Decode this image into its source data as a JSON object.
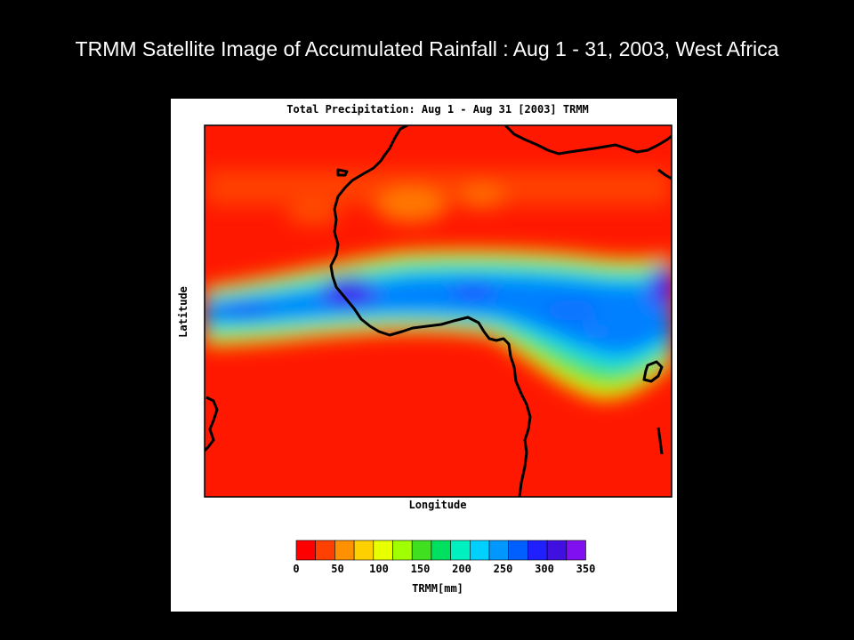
{
  "slide_title": "TRMM Satellite Image of Accumulated Rainfall : Aug 1 - 31, 2003, West Africa",
  "map": {
    "title": "Total Precipitation: Aug 1 - Aug 31 [2003] TRMM",
    "xlabel": "Longitude",
    "ylabel": "Latitude"
  },
  "colorbar": {
    "label": "TRMM[mm]",
    "ticks": [
      "0",
      "50",
      "100",
      "150",
      "200",
      "250",
      "300",
      "350"
    ],
    "colors": [
      "#ff0000",
      "#ff4000",
      "#ff9000",
      "#ffd000",
      "#e8ff00",
      "#a0ff00",
      "#40e020",
      "#00e060",
      "#00f0c0",
      "#00d0ff",
      "#0098ff",
      "#0060ff",
      "#2020ff",
      "#4010e0",
      "#8010f0"
    ]
  },
  "colors": {
    "low": "#ff2000",
    "high": "#7a10e8",
    "coastline": "#000000",
    "background": "#000000",
    "panel": "#ffffff"
  }
}
